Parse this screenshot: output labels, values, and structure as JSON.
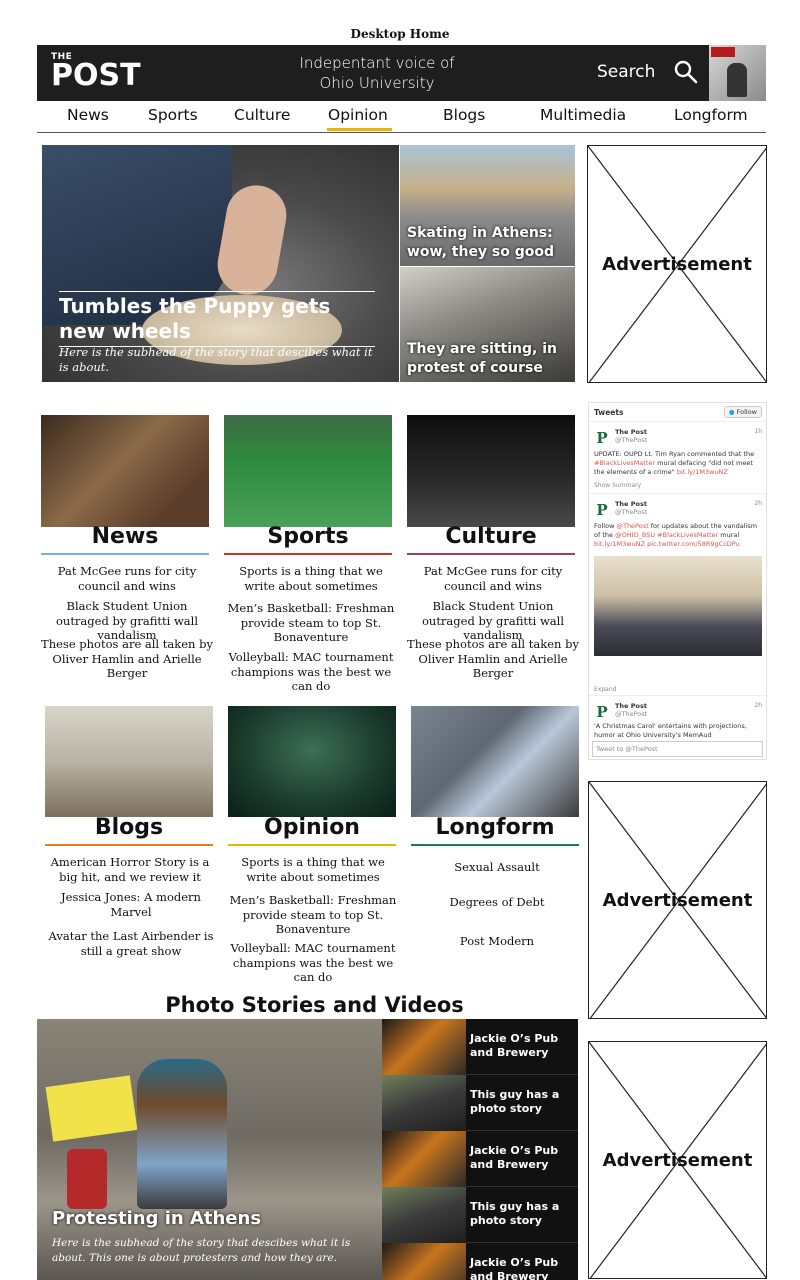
{
  "page": {
    "caption": "Desktop Home"
  },
  "header": {
    "logo_small": "THE",
    "logo_big": "POST",
    "tagline_line1": "Indepentant voice of",
    "tagline_line2": "Ohio University",
    "search_label": "Search"
  },
  "nav": {
    "items": [
      "News",
      "Sports",
      "Culture",
      "Opinion",
      "Blogs",
      "Multimedia",
      "Longform"
    ],
    "active": "Opinion",
    "active_color": "#e6b800"
  },
  "hero": {
    "main_title": "Tumbles the Puppy gets new wheels",
    "main_sub": "Here is the subhead of the story that descibes what it is about.",
    "side1_title": "Skating in Athens: wow, they so good",
    "side2_title": "They are sitting, in protest of course"
  },
  "ads": {
    "label": "Advertisement"
  },
  "twitter": {
    "header": "Tweets",
    "follow": "Follow",
    "tweets": [
      {
        "name": "The Post",
        "handle": "@ThePost",
        "time": "1h",
        "text_a": "UPDATE: OUPD Lt. Tim Ryan commented that the ",
        "text_link": "#BlackLivesMatter",
        "text_b": " mural defacing \"did not meet the elements of a crime\" ",
        "text_link2": "bit.ly/1M3wuNZ",
        "footer": "Show Summary"
      },
      {
        "name": "The Post",
        "handle": "@ThePost",
        "time": "2h",
        "text_a": "Follow ",
        "text_link": "@ThePost",
        "text_b": " for updates about the vandalism of the ",
        "text_link2": "@OHIO_BSU #BlackLivesMatter",
        "text_c": " mural ",
        "text_link3": "bit.ly/1M3wuNZ pic.twitter.com/58R9gCcDPu",
        "footer": "Expand"
      },
      {
        "name": "The Post",
        "handle": "@ThePost",
        "time": "2h",
        "text_a": "'A Christmas Carol' entertains with projections, humor at Ohio University's MemAud"
      }
    ],
    "input_placeholder": "Tweet to @ThePost"
  },
  "sections": [
    {
      "title": "News",
      "color": "#6fb3d9",
      "items": [
        "Pat McGee runs for city council and wins",
        "Black Student Union outraged by grafitti wall vandalism",
        "These photos are all taken by Oliver Hamlin and Arielle Berger"
      ]
    },
    {
      "title": "Sports",
      "color": "#c0392b",
      "items": [
        "Sports is a thing that we write about sometimes",
        "Men’s Basketball: Freshman provide steam to top St. Bonaventure",
        "Volleyball: MAC tournament champions was the best we can do"
      ]
    },
    {
      "title": "Culture",
      "color": "#a0405e",
      "items": [
        "Pat McGee runs for city council and wins",
        "Black Student Union outraged by grafitti wall vandalism",
        "These photos are all taken by Oliver Hamlin and Arielle Berger"
      ]
    },
    {
      "title": "Blogs",
      "color": "#e67e22",
      "items": [
        "American Horror Story is a big hit, and we review it",
        "Jessica Jones: A modern Marvel",
        "Avatar the Last Airbender is still a great show"
      ]
    },
    {
      "title": "Opinion",
      "color": "#e6b800",
      "items": [
        "Sports is a thing that we write about sometimes",
        "Men’s Basketball: Freshman provide steam to top St. Bonaventure",
        "Volleyball: MAC tournament champions was the best we can do"
      ]
    },
    {
      "title": "Longform",
      "color": "#1e7a4f",
      "items": [
        "Sexual Assault",
        "Degrees of Debt",
        "Post Modern"
      ]
    }
  ],
  "photo_stories": {
    "heading": "Photo Stories and Videos",
    "main_title": "Protesting in Athens",
    "main_sub": "Here is the subhead of the story that descibes what it is about. This one is about protesters and how they are.",
    "list": [
      "Jackie O’s Pub and Brewery",
      "This guy has a photo story",
      "Jackie O’s Pub and Brewery",
      "This guy has a photo story",
      "Jackie O’s Pub and Brewery"
    ]
  },
  "icons": {
    "search": "search-icon",
    "twitter_bird": "twitter-bird-icon"
  }
}
